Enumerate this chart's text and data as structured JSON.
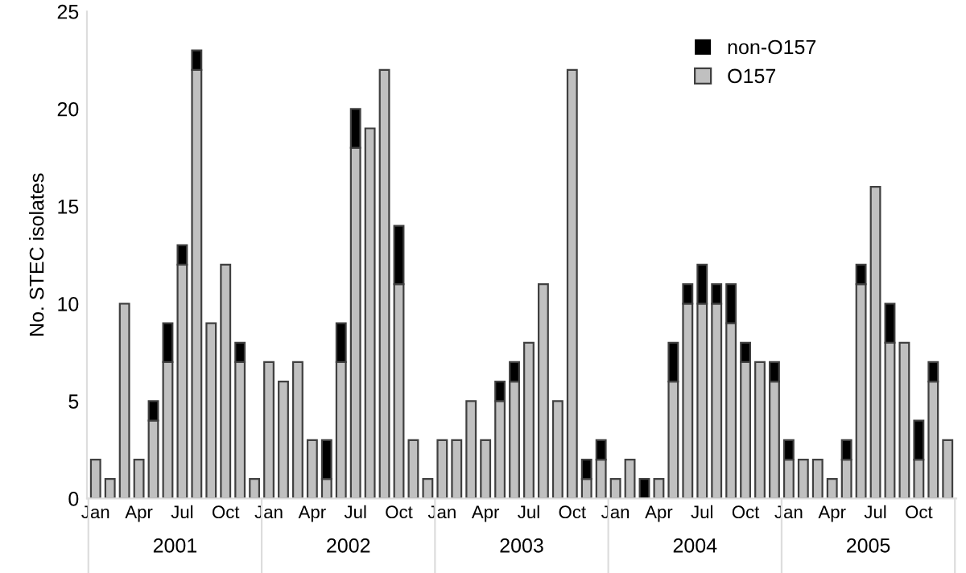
{
  "chart_data": {
    "type": "bar",
    "stacked": true,
    "ylabel": "No. STEC isolates",
    "categories": [
      "Jan",
      null,
      null,
      "Apr",
      null,
      null,
      "Jul",
      null,
      null,
      "Oct",
      null,
      null,
      "Jan",
      null,
      null,
      "Apr",
      null,
      null,
      "Jul",
      null,
      null,
      "Oct",
      null,
      null,
      "Jan",
      null,
      null,
      "Apr",
      null,
      null,
      "Jul",
      null,
      null,
      "Oct",
      null,
      null,
      "Jan",
      null,
      null,
      "Apr",
      null,
      null,
      "Jul",
      null,
      null,
      "Oct",
      null,
      null,
      "Jan",
      null,
      null,
      "Apr",
      null,
      null,
      "Jul",
      null,
      null,
      "Oct",
      null,
      null
    ],
    "series": [
      {
        "name": "O157",
        "color": "#c0c0c0",
        "values": [
          2,
          1,
          10,
          2,
          4,
          7,
          12,
          22,
          9,
          12,
          7,
          1,
          7,
          6,
          7,
          3,
          1,
          7,
          18,
          19,
          22,
          11,
          3,
          1,
          3,
          3,
          5,
          3,
          5,
          6,
          8,
          11,
          5,
          22,
          1,
          2,
          1,
          2,
          0,
          1,
          6,
          10,
          10,
          10,
          9,
          7,
          7,
          6,
          2,
          2,
          2,
          1,
          2,
          11,
          16,
          8,
          8,
          2,
          6,
          3
        ]
      },
      {
        "name": "non-O157",
        "color": "#000000",
        "values": [
          0,
          0,
          0,
          0,
          1,
          2,
          1,
          1,
          0,
          0,
          1,
          0,
          0,
          0,
          0,
          0,
          2,
          2,
          2,
          0,
          0,
          3,
          0,
          0,
          0,
          0,
          0,
          0,
          1,
          1,
          0,
          0,
          0,
          0,
          1,
          1,
          0,
          0,
          1,
          0,
          2,
          1,
          2,
          1,
          2,
          1,
          0,
          1,
          1,
          0,
          0,
          0,
          1,
          1,
          0,
          2,
          0,
          2,
          1,
          0
        ]
      }
    ],
    "annotations": [
      "2001",
      "2002",
      "2003",
      "2004",
      "2005"
    ],
    "ylim": [
      0,
      25
    ],
    "yticks": [
      0,
      5,
      10,
      15,
      20,
      25
    ],
    "grid": false,
    "legend": "top right"
  }
}
